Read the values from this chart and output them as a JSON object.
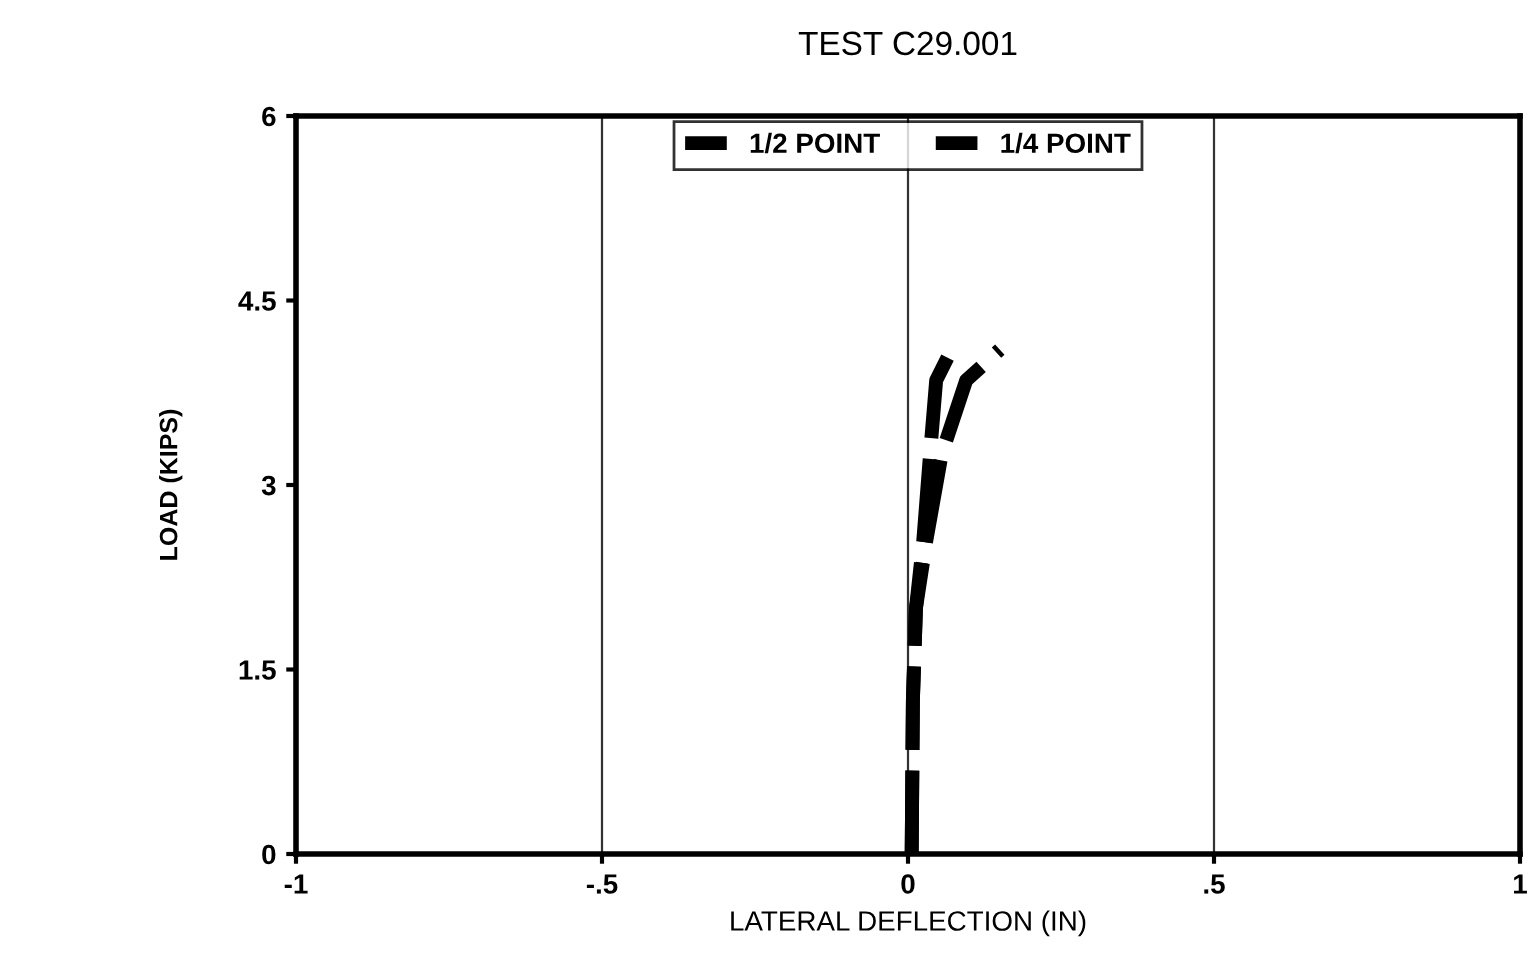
{
  "chart_data": {
    "type": "line",
    "title": "TEST C29.001",
    "xlabel": "LATERAL DEFLECTION (IN)",
    "ylabel": "LOAD (KIPS)",
    "xlim": [
      -1,
      1
    ],
    "xticks": [
      -1,
      {
        "value": -0.5,
        "label": "-.5"
      },
      0,
      {
        "value": 0.5,
        "label": ".5"
      },
      1
    ],
    "ylim": [
      0,
      6
    ],
    "yticks": [
      0,
      1.5,
      3,
      4.5,
      6
    ],
    "grid": "x",
    "legend": "top",
    "line_style": "dashed",
    "marker": "none",
    "series": [
      {
        "name": "1/2 POINT",
        "color": "#000000",
        "x": [
          0.006,
          0.008,
          0.013,
          0.03,
          0.055,
          0.095,
          0.15
        ],
        "values": [
          0,
          1.25,
          2.0,
          2.55,
          3.25,
          3.85,
          4.1
        ]
      },
      {
        "name": "1/4 POINT",
        "color": "#000000",
        "x": [
          0.006,
          0.008,
          0.013,
          0.025,
          0.036,
          0.046,
          0.074
        ],
        "values": [
          0,
          1.25,
          2.0,
          2.55,
          3.25,
          3.85,
          4.13
        ]
      }
    ]
  }
}
